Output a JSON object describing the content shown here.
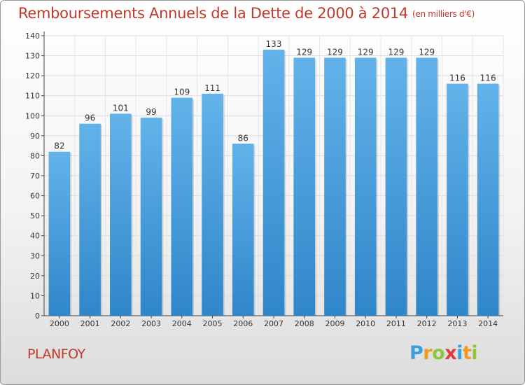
{
  "header": {
    "title": "Remboursements Annuels de la Dette de 2000 à 2014",
    "unit": "(en milliers d'€)"
  },
  "footer": {
    "commune": "PLANFOY",
    "logo_letters": [
      "P",
      "r",
      "o",
      "x",
      "i",
      "t",
      "i"
    ],
    "logo_colors": [
      "#3aa0dc",
      "#f39a1c",
      "#8bc63e",
      "#e03c3c",
      "#3aa0dc",
      "#f39a1c",
      "#8bc63e"
    ]
  },
  "colors": {
    "bar": "#3f97d7",
    "bar_light": "#63b3ea",
    "title": "#c0392b",
    "grid": "#dddddd"
  },
  "chart_data": {
    "type": "bar",
    "title": "Remboursements Annuels de la Dette de 2000 à 2014",
    "subtitle": "(en milliers d'€)",
    "categories": [
      "2000",
      "2001",
      "2002",
      "2003",
      "2004",
      "2005",
      "2006",
      "2007",
      "2008",
      "2009",
      "2010",
      "2011",
      "2012",
      "2013",
      "2014"
    ],
    "values": [
      82,
      96,
      101,
      99,
      109,
      111,
      86,
      133,
      129,
      129,
      129,
      129,
      129,
      116,
      116
    ],
    "ylim": [
      0,
      140
    ],
    "yticks": [
      0,
      10,
      20,
      30,
      40,
      50,
      60,
      70,
      80,
      90,
      100,
      110,
      120,
      130,
      140
    ],
    "grid": true,
    "xlabel": "",
    "ylabel": ""
  }
}
